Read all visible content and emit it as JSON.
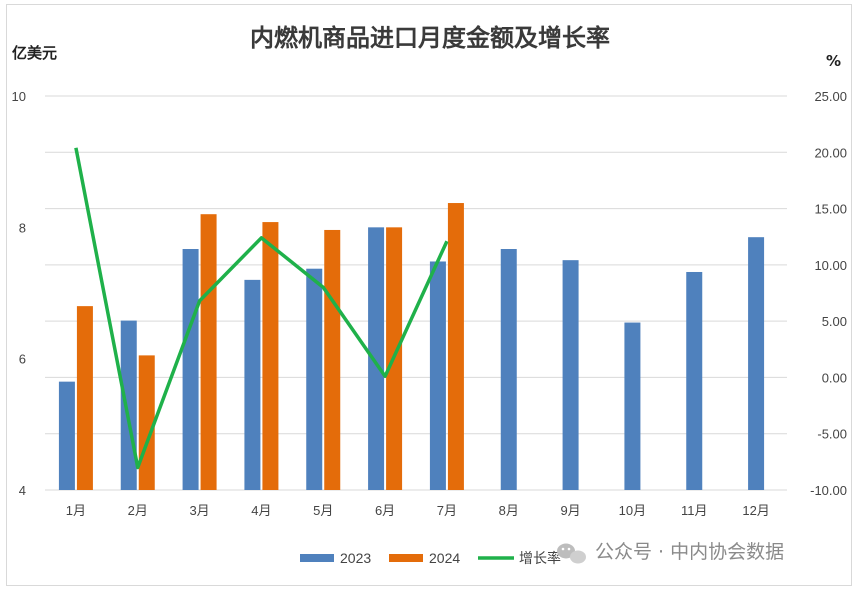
{
  "chart_data": {
    "type": "bar",
    "title": "内燃机商品进口月度金额及增长率",
    "left_unit": "亿美元",
    "right_unit": "%",
    "categories": [
      "1月",
      "2月",
      "3月",
      "4月",
      "5月",
      "6月",
      "7月",
      "8月",
      "9月",
      "10月",
      "11月",
      "12月"
    ],
    "y_left": {
      "range": [
        4,
        10
      ],
      "ticks": [
        4,
        6,
        8,
        10
      ]
    },
    "y_right": {
      "range": [
        -10,
        25
      ],
      "ticks": [
        "-10.00",
        "-5.00",
        "0.00",
        "5.00",
        "10.00",
        "15.00",
        "20.00",
        "25.00"
      ]
    },
    "series": [
      {
        "name": "2023",
        "type": "bar",
        "axis": "left",
        "color": "#4f81bd",
        "values": [
          5.65,
          6.58,
          7.67,
          7.2,
          7.37,
          8.0,
          7.48,
          7.67,
          7.5,
          6.55,
          7.32,
          7.85
        ]
      },
      {
        "name": "2024",
        "type": "bar",
        "axis": "left",
        "color": "#e46c0a",
        "values": [
          6.8,
          6.05,
          8.2,
          8.08,
          7.96,
          8.0,
          8.37,
          null,
          null,
          null,
          null,
          null
        ]
      },
      {
        "name": "增长率",
        "type": "line",
        "axis": "right",
        "color": "#1fb14a",
        "values": [
          20.4,
          -8.0,
          6.8,
          12.4,
          8.0,
          0.1,
          12.1,
          null,
          null,
          null,
          null,
          null
        ]
      }
    ],
    "gridlines": "horizontal",
    "legend_position": "bottom"
  },
  "watermark": {
    "text": "公众号 · 中内协会数据",
    "icon": "wechat-icon"
  }
}
